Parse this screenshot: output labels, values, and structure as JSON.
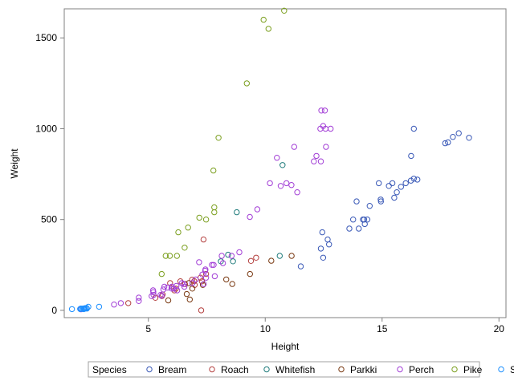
{
  "chart_data": {
    "type": "scatter",
    "title": "",
    "xlabel": "Height",
    "ylabel": "Weight",
    "xlim": [
      1.4,
      20.3
    ],
    "ylim": [
      -40,
      1660
    ],
    "xticks": [
      5,
      10,
      15,
      20
    ],
    "yticks": [
      0,
      500,
      1000,
      1500
    ],
    "grid": false,
    "legend": {
      "position": "bottom",
      "title": "Species"
    },
    "series": [
      {
        "name": "Bream",
        "color": "#3A59B7",
        "points": [
          [
            11.52,
            242
          ],
          [
            12.48,
            290
          ],
          [
            12.38,
            340
          ],
          [
            12.73,
            363
          ],
          [
            12.44,
            430
          ],
          [
            13.6,
            450
          ],
          [
            14.18,
            500
          ],
          [
            12.67,
            390
          ],
          [
            14.0,
            450
          ],
          [
            14.23,
            500
          ],
          [
            14.26,
            475
          ],
          [
            14.37,
            500
          ],
          [
            13.76,
            500
          ],
          [
            13.91,
            600
          ],
          [
            14.95,
            600
          ],
          [
            15.44,
            700
          ],
          [
            14.86,
            700
          ],
          [
            14.94,
            610
          ],
          [
            15.63,
            650
          ],
          [
            14.47,
            575
          ],
          [
            15.29,
            685
          ],
          [
            15.52,
            620
          ],
          [
            15.81,
            680
          ],
          [
            16.01,
            700
          ],
          [
            16.36,
            725
          ],
          [
            16.51,
            720
          ],
          [
            16.23,
            714
          ],
          [
            16.24,
            850
          ],
          [
            16.36,
            1000
          ],
          [
            17.7,
            920
          ],
          [
            18.03,
            955
          ],
          [
            17.82,
            925
          ],
          [
            18.28,
            975
          ],
          [
            18.72,
            950
          ]
        ]
      },
      {
        "name": "Roach",
        "color": "#B4403F",
        "points": [
          [
            4.14,
            40
          ],
          [
            5.3,
            69
          ],
          [
            5.58,
            78
          ],
          [
            5.61,
            87
          ],
          [
            6.18,
            120
          ],
          [
            6.11,
            110
          ],
          [
            6.09,
            120
          ],
          [
            5.93,
            150
          ],
          [
            6.57,
            145
          ],
          [
            6.37,
            160
          ],
          [
            6.98,
            140
          ],
          [
            7.29,
            160
          ],
          [
            6.87,
            169
          ],
          [
            6.96,
            161
          ],
          [
            7.47,
            200
          ],
          [
            7.23,
            180
          ],
          [
            9.61,
            290
          ],
          [
            9.39,
            272
          ],
          [
            7.26,
            0
          ],
          [
            7.36,
            390
          ]
        ]
      },
      {
        "name": "Whitefish",
        "color": "#1F7B7B",
        "points": [
          [
            8.62,
            270
          ],
          [
            8.41,
            306
          ],
          [
            8.78,
            540
          ],
          [
            10.74,
            800
          ],
          [
            8.1,
            270
          ],
          [
            10.62,
            300
          ]
        ]
      },
      {
        "name": "Parkki",
        "color": "#7A3A13",
        "points": [
          [
            5.85,
            55
          ],
          [
            6.77,
            60
          ],
          [
            6.64,
            90
          ],
          [
            6.88,
            120
          ],
          [
            6.73,
            150
          ],
          [
            7.33,
            140
          ],
          [
            8.33,
            170
          ],
          [
            8.59,
            145
          ],
          [
            9.35,
            200
          ],
          [
            10.26,
            273
          ],
          [
            11.13,
            300
          ]
        ]
      },
      {
        "name": "Perch",
        "color": "#A23ED6",
        "points": [
          [
            2.11,
            5.9
          ],
          [
            3.53,
            32
          ],
          [
            3.82,
            40
          ],
          [
            4.59,
            51.5
          ],
          [
            4.59,
            70
          ],
          [
            5.21,
            100
          ],
          [
            5.14,
            78
          ],
          [
            5.58,
            80
          ],
          [
            5.52,
            85
          ],
          [
            5.22,
            85
          ],
          [
            5.2,
            110
          ],
          [
            5.64,
            115
          ],
          [
            5.82,
            125
          ],
          [
            5.68,
            130
          ],
          [
            6.08,
            120
          ],
          [
            5.99,
            120
          ],
          [
            6.0,
            130
          ],
          [
            6.2,
            135
          ],
          [
            6.23,
            110
          ],
          [
            6.54,
            130
          ],
          [
            6.43,
            150
          ],
          [
            6.51,
            145
          ],
          [
            6.88,
            150
          ],
          [
            7.03,
            170
          ],
          [
            7.44,
            225
          ],
          [
            7.37,
            145
          ],
          [
            7.84,
            188
          ],
          [
            7.47,
            180
          ],
          [
            7.31,
            197
          ],
          [
            7.43,
            218
          ],
          [
            8.14,
            300
          ],
          [
            8.19,
            260
          ],
          [
            7.17,
            265
          ],
          [
            7.72,
            250
          ],
          [
            7.79,
            250
          ],
          [
            8.56,
            300
          ],
          [
            8.89,
            320
          ],
          [
            9.34,
            514
          ],
          [
            9.66,
            556
          ],
          [
            10.5,
            840
          ],
          [
            10.66,
            685
          ],
          [
            10.2,
            700
          ],
          [
            10.91,
            700
          ],
          [
            11.12,
            690
          ],
          [
            11.24,
            900
          ],
          [
            11.37,
            650
          ],
          [
            12.08,
            820
          ],
          [
            12.19,
            850
          ],
          [
            12.6,
            900
          ],
          [
            12.48,
            1015
          ],
          [
            12.38,
            820
          ],
          [
            12.55,
            1100
          ],
          [
            12.8,
            1000
          ],
          [
            12.4,
            1100
          ],
          [
            12.36,
            1000
          ],
          [
            12.58,
            1000
          ]
        ]
      },
      {
        "name": "Pike",
        "color": "#7B9F1F",
        "points": [
          [
            5.57,
            200
          ],
          [
            5.74,
            300
          ],
          [
            5.92,
            300
          ],
          [
            6.22,
            300
          ],
          [
            6.28,
            430
          ],
          [
            6.55,
            345
          ],
          [
            6.7,
            456
          ],
          [
            7.18,
            510
          ],
          [
            7.82,
            540
          ],
          [
            7.47,
            500
          ],
          [
            7.82,
            567
          ],
          [
            7.78,
            770
          ],
          [
            8.0,
            950
          ],
          [
            9.21,
            1250
          ],
          [
            9.93,
            1600
          ],
          [
            10.14,
            1550
          ],
          [
            10.81,
            1650
          ]
        ]
      },
      {
        "name": "Smelt",
        "color": "#1E90FF",
        "points": [
          [
            1.73,
            6.7
          ],
          [
            2.08,
            7.5
          ],
          [
            2.23,
            7.0
          ],
          [
            2.11,
            9.7
          ],
          [
            2.21,
            9.8
          ],
          [
            2.16,
            8.7
          ],
          [
            2.26,
            10.0
          ],
          [
            2.37,
            9.9
          ],
          [
            2.28,
            9.8
          ],
          [
            2.29,
            12.2
          ],
          [
            2.35,
            13.4
          ],
          [
            2.36,
            12.2
          ],
          [
            2.43,
            19.7
          ],
          [
            2.89,
            19.9
          ]
        ]
      }
    ]
  }
}
